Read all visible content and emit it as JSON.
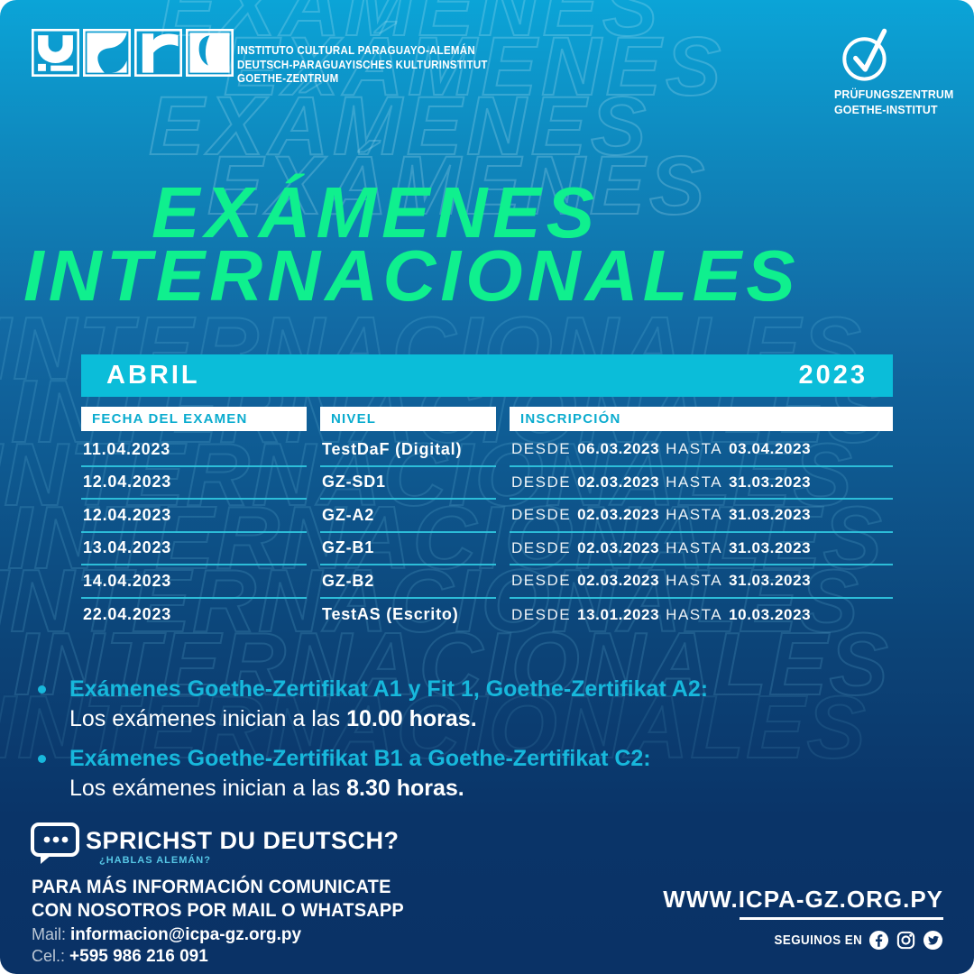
{
  "colors": {
    "accent_green": "#0ff08e",
    "bar_cyan": "#0bbdd9",
    "head_cyan": "#0baccf",
    "note_cyan": "#17b8dc",
    "navy": "#0a3266"
  },
  "watermark": {
    "word_top": "EXÁMENES",
    "word_mid": "INTERNACIONALES"
  },
  "header": {
    "institute_line1": "INSTITUTO CULTURAL PARAGUAYO-ALEMÁN",
    "institute_line2": "DEUTSCH-PARAGUAYISCHES KULTURINSTITUT",
    "institute_line3": "GOETHE-ZENTRUM",
    "goethe_line1": "PRÜFUNGSZENTRUM",
    "goethe_line2": "GOETHE-INSTITUT"
  },
  "title": {
    "line1": "EXÁMENES",
    "line2": "INTERNACIONALES"
  },
  "table": {
    "month": "ABRIL",
    "year": "2023",
    "columns": [
      "FECHA DEL EXAMEN",
      "NIVEL",
      "INSCRIPCIÓN"
    ],
    "desde_label": "DESDE",
    "hasta_label": "HASTA",
    "rows": [
      {
        "fecha": "11.04.2023",
        "nivel": "TestDaF (Digital)",
        "desde": "06.03.2023",
        "hasta": "03.04.2023"
      },
      {
        "fecha": "12.04.2023",
        "nivel": "GZ-SD1",
        "desde": "02.03.2023",
        "hasta": "31.03.2023"
      },
      {
        "fecha": "12.04.2023",
        "nivel": "GZ-A2",
        "desde": "02.03.2023",
        "hasta": "31.03.2023"
      },
      {
        "fecha": "13.04.2023",
        "nivel": "GZ-B1",
        "desde": "02.03.2023",
        "hasta": "31.03.2023"
      },
      {
        "fecha": "14.04.2023",
        "nivel": "GZ-B2",
        "desde": "02.03.2023",
        "hasta": "31.03.2023"
      },
      {
        "fecha": "22.04.2023",
        "nivel": "TestAS (Escrito)",
        "desde": "13.01.2023",
        "hasta": "10.03.2023"
      }
    ]
  },
  "notes": [
    {
      "heading": "Exámenes Goethe-Zertifikat A1 y Fit 1, Goethe-Zertifikat A2:",
      "body_prefix": "Los exámenes inician a las ",
      "body_bold": "10.00 horas."
    },
    {
      "heading": "Exámenes Goethe-Zertifikat B1 a Goethe-Zertifikat C2:",
      "body_prefix": "Los exámenes inician a las ",
      "body_bold": "8.30 horas."
    }
  ],
  "footer": {
    "sprichst": "SPRICHST DU DEUTSCH?",
    "hablas": "¿HABLAS ALEMÁN?",
    "info_line1": "PARA MÁS INFORMACIÓN COMUNICATE",
    "info_line2": "CON NOSOTROS POR MAIL O WHATSAPP",
    "mail_label": "Mail:",
    "mail_value": "informacion@icpa-gz.org.py",
    "cel_label": "Cel.:",
    "cel_value": "+595 986 216 091",
    "website": "WWW.ICPA-GZ.ORG.PY",
    "seguinos": "SEGUINOS EN"
  }
}
